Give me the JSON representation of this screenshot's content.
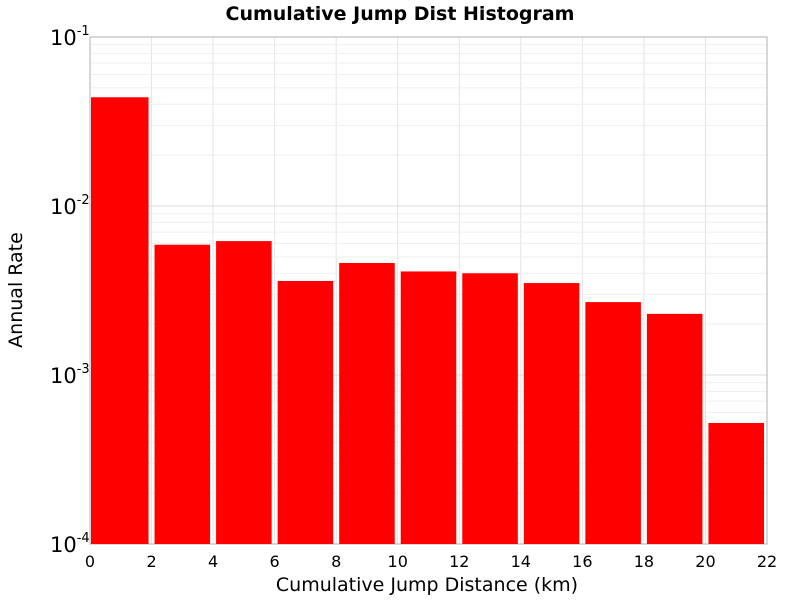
{
  "chart_data": {
    "type": "bar",
    "title": "Cumulative Jump Dist Histogram",
    "xlabel": "Cumulative Jump Distance (km)",
    "ylabel": "Annual Rate",
    "xlim": [
      0,
      22
    ],
    "ylim": [
      0.0001,
      0.1
    ],
    "yscale": "log",
    "grid": true,
    "bar_color": "#ff0000",
    "x_ticks": [
      "0",
      "2",
      "4",
      "6",
      "8",
      "10",
      "12",
      "14",
      "16",
      "18",
      "20",
      "22"
    ],
    "y_ticks": [
      {
        "base": "10",
        "exp": "-4"
      },
      {
        "base": "10",
        "exp": "-3"
      },
      {
        "base": "10",
        "exp": "-2"
      },
      {
        "base": "10",
        "exp": "-1"
      }
    ],
    "bins": [
      {
        "x0": 0,
        "x1": 2,
        "value": 0.044
      },
      {
        "x0": 2,
        "x1": 4,
        "value": 0.0059
      },
      {
        "x0": 4,
        "x1": 6,
        "value": 0.0062
      },
      {
        "x0": 6,
        "x1": 8,
        "value": 0.0036
      },
      {
        "x0": 8,
        "x1": 10,
        "value": 0.0046
      },
      {
        "x0": 10,
        "x1": 12,
        "value": 0.0041
      },
      {
        "x0": 12,
        "x1": 14,
        "value": 0.004
      },
      {
        "x0": 14,
        "x1": 16,
        "value": 0.0035
      },
      {
        "x0": 16,
        "x1": 18,
        "value": 0.0027
      },
      {
        "x0": 18,
        "x1": 20,
        "value": 0.0023
      },
      {
        "x0": 20,
        "x1": 22,
        "value": 0.00052
      }
    ]
  }
}
